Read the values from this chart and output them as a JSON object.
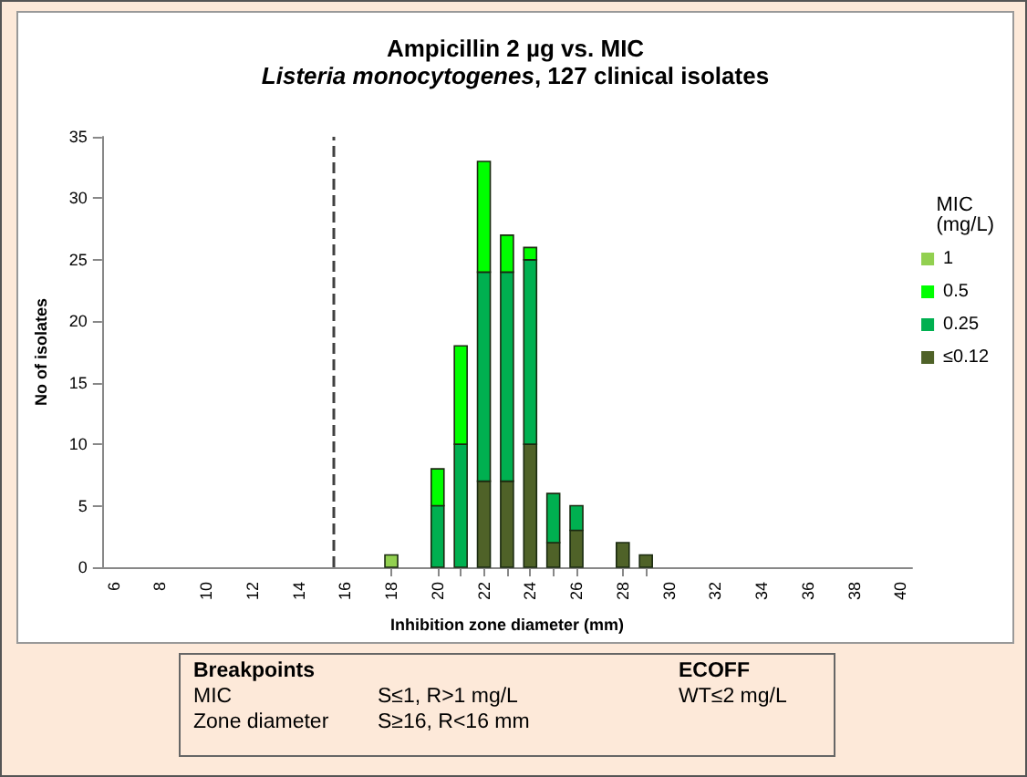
{
  "chart_data": {
    "type": "bar",
    "title": "Ampicillin 2 µg vs. MIC",
    "subtitle": "Listeria monocytogenes, 127 clinical isolates",
    "xlabel": "Inhibition zone diameter (mm)",
    "ylabel": "No of isolates",
    "legend_title": "MIC (mg/L)",
    "x": [
      18,
      20,
      21,
      22,
      23,
      24,
      25,
      26,
      28,
      29
    ],
    "stacked": true,
    "series": [
      {
        "name": "≤0.12",
        "color": "#4f6228",
        "values": [
          null,
          null,
          null,
          7,
          7,
          10,
          2,
          3,
          2,
          1
        ]
      },
      {
        "name": "0.25",
        "color": "#00b050",
        "values": [
          null,
          5,
          10,
          17,
          17,
          15,
          4,
          2,
          null,
          null
        ]
      },
      {
        "name": "0.5",
        "color": "#00ff00",
        "values": [
          null,
          3,
          8,
          9,
          3,
          1,
          null,
          null,
          null,
          null
        ]
      },
      {
        "name": "1",
        "color": "#92d050",
        "values": [
          1,
          null,
          null,
          null,
          null,
          null,
          null,
          null,
          null,
          null
        ]
      }
    ],
    "xlim": [
      5.5,
      40.5
    ],
    "xticks": [
      6,
      8,
      10,
      12,
      14,
      16,
      18,
      20,
      22,
      24,
      26,
      28,
      30,
      32,
      34,
      36,
      38,
      40
    ],
    "ylim": [
      0,
      35
    ],
    "yticks": [
      0,
      5,
      10,
      15,
      20,
      25,
      30,
      35
    ],
    "ref_lines": [
      {
        "axis": "x",
        "value": 15.5,
        "color": "#404040",
        "line_style": "dashed"
      }
    ],
    "grid": false,
    "legend": "right",
    "annotations": [
      "Breakpoints",
      "MIC",
      "S≤1, R>1 mg/L",
      "Zone diameter",
      "S≥16, R<16 mm",
      "ECOFF",
      "WT≤2 mg/L"
    ]
  }
}
